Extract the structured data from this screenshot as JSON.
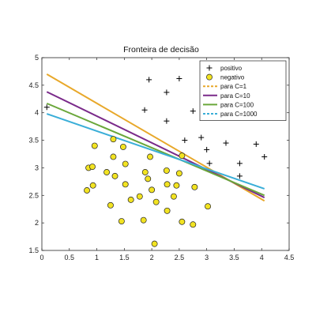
{
  "chart_data": {
    "type": "scatter",
    "title": "Fronteira de decisão",
    "xlabel": "",
    "ylabel": "",
    "xlim": [
      0,
      4.5
    ],
    "ylim": [
      1.5,
      5
    ],
    "xticks": [
      "0",
      "0.5",
      "1",
      "1.5",
      "2",
      "2.5",
      "3",
      "3.5",
      "4",
      "4.5"
    ],
    "yticks": [
      "1.5",
      "2",
      "2.5",
      "3",
      "3.5",
      "4",
      "4.5",
      "5"
    ],
    "grid": false,
    "legend_position": "top-right",
    "scatter_series": [
      {
        "name": "positivo",
        "marker": "plus",
        "color": "#000000",
        "points": [
          [
            0.09,
            4.1
          ],
          [
            1.95,
            4.6
          ],
          [
            2.5,
            4.62
          ],
          [
            2.95,
            4.57
          ],
          [
            2.27,
            4.37
          ],
          [
            1.87,
            4.05
          ],
          [
            2.75,
            4.03
          ],
          [
            3.97,
            4.05
          ],
          [
            2.27,
            3.85
          ],
          [
            2.9,
            3.55
          ],
          [
            2.6,
            3.5
          ],
          [
            3.0,
            3.33
          ],
          [
            3.35,
            3.45
          ],
          [
            3.9,
            3.43
          ],
          [
            4.05,
            3.2
          ],
          [
            3.05,
            3.08
          ],
          [
            3.6,
            3.08
          ],
          [
            3.6,
            2.85
          ]
        ]
      },
      {
        "name": "negativo",
        "marker": "circle",
        "color": "#f2e322",
        "points": [
          [
            0.85,
            3.0
          ],
          [
            0.92,
            3.02
          ],
          [
            0.96,
            3.4
          ],
          [
            0.93,
            2.68
          ],
          [
            0.82,
            2.59
          ],
          [
            1.3,
            3.2
          ],
          [
            1.3,
            3.52
          ],
          [
            1.48,
            3.38
          ],
          [
            1.52,
            3.07
          ],
          [
            1.18,
            2.92
          ],
          [
            1.52,
            2.7
          ],
          [
            1.33,
            2.85
          ],
          [
            1.25,
            2.32
          ],
          [
            1.62,
            2.42
          ],
          [
            1.88,
            2.92
          ],
          [
            1.93,
            2.8
          ],
          [
            2.0,
            2.6
          ],
          [
            1.78,
            2.48
          ],
          [
            2.08,
            2.38
          ],
          [
            2.27,
            2.95
          ],
          [
            2.28,
            2.7
          ],
          [
            2.5,
            2.9
          ],
          [
            2.4,
            2.48
          ],
          [
            2.45,
            2.68
          ],
          [
            2.78,
            2.65
          ],
          [
            1.97,
            3.2
          ],
          [
            2.55,
            3.22
          ],
          [
            1.45,
            2.03
          ],
          [
            2.28,
            2.22
          ],
          [
            1.85,
            2.05
          ],
          [
            2.55,
            2.02
          ],
          [
            2.75,
            1.97
          ],
          [
            3.02,
            2.3
          ],
          [
            2.05,
            1.62
          ]
        ]
      }
    ],
    "line_series": [
      {
        "name": "para C=1",
        "color": "#e8a82a",
        "style": "solid",
        "x": [
          0.09,
          4.05
        ],
        "y": [
          4.7,
          2.4
        ]
      },
      {
        "name": "para C=10",
        "color": "#7a2a8a",
        "style": "solid",
        "x": [
          0.09,
          4.05
        ],
        "y": [
          4.38,
          2.46
        ]
      },
      {
        "name": "para C=100",
        "color": "#6aa73a",
        "style": "solid",
        "x": [
          0.09,
          4.05
        ],
        "y": [
          4.17,
          2.5
        ]
      },
      {
        "name": "para C=1000",
        "color": "#3aaed8",
        "style": "solid",
        "x": [
          0.09,
          4.05
        ],
        "y": [
          3.98,
          2.62
        ]
      }
    ],
    "legend": [
      {
        "label": "positivo",
        "kind": "plus",
        "color": "#000000"
      },
      {
        "label": "negativo",
        "kind": "circle",
        "color": "#f2e322"
      },
      {
        "label": "para C=1",
        "kind": "dashed-line",
        "color": "#e8a82a"
      },
      {
        "label": "para C=10",
        "kind": "line",
        "color": "#7a2a8a"
      },
      {
        "label": "para C=100",
        "kind": "line",
        "color": "#6aa73a"
      },
      {
        "label": "para C=1000",
        "kind": "dashed-line",
        "color": "#3aaed8"
      }
    ]
  }
}
